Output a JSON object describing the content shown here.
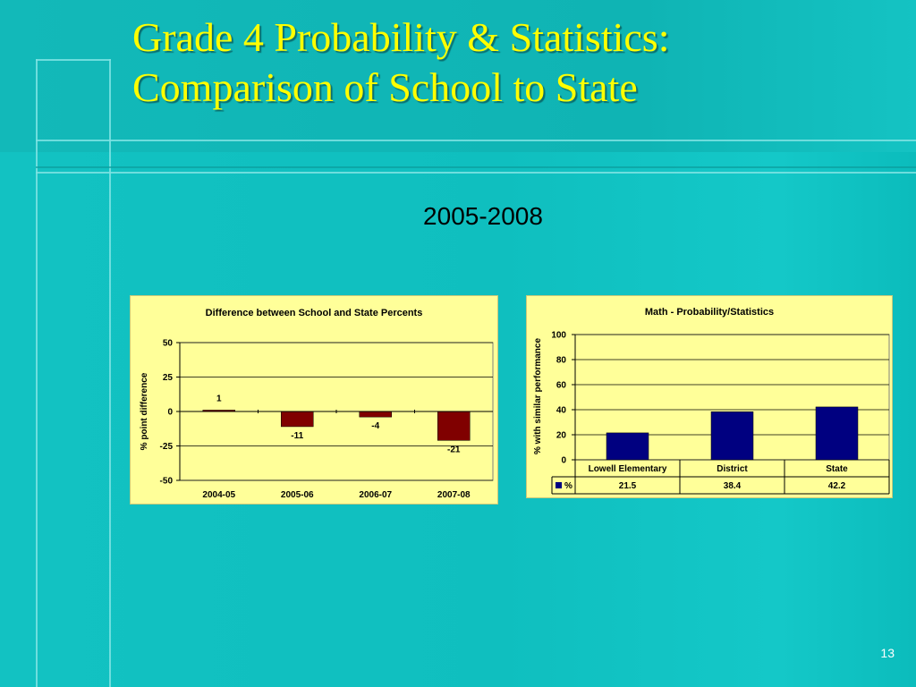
{
  "slide": {
    "title_line1": "Grade 4 Probability & Statistics:",
    "title_line2": "Comparison of School to State",
    "subtitle": "2005-2008",
    "page_number": "13"
  },
  "colors": {
    "title": "#ffff00",
    "chart_bg": "#ffff99",
    "bar_negative": "#800000",
    "bar_primary": "#000080"
  },
  "chart_data": [
    {
      "type": "bar",
      "title": "Difference between School and State Percents",
      "xlabel": "",
      "ylabel": "% point difference",
      "categories": [
        "2004-05",
        "2005-06",
        "2006-07",
        "2007-08"
      ],
      "values": [
        1,
        -11,
        -4,
        -21
      ],
      "data_labels": [
        "1",
        "-11",
        "-4",
        "-21"
      ],
      "ylim": [
        -50,
        50
      ],
      "yticks": [
        50,
        25,
        0,
        -25,
        -50
      ],
      "grid": true,
      "legend": "none"
    },
    {
      "type": "bar",
      "title": "Math - Probability/Statistics",
      "xlabel": "",
      "ylabel": "% with similar performance",
      "categories": [
        "Lowell Elementary",
        "District",
        "State"
      ],
      "series": [
        {
          "name": "%",
          "values": [
            21.5,
            38.4,
            42.2
          ]
        }
      ],
      "table_values": [
        "21.5",
        "38.4",
        "42.2"
      ],
      "ylim": [
        0,
        100
      ],
      "yticks": [
        100,
        80,
        60,
        40,
        20,
        0
      ],
      "grid": true,
      "legend": "data-table"
    }
  ]
}
